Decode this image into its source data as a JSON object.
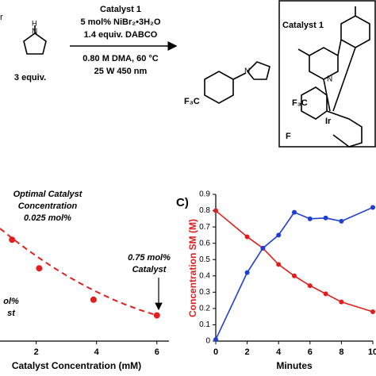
{
  "scheme": {
    "fragment": "r",
    "conditions": [
      "Catalyst 1",
      "5 mol% NiBr₂•3H₂O",
      "1.4 equiv. DABCO",
      "0.80 M DMA, 60 °C",
      "25 W 450 nm"
    ],
    "amine_equiv": "3 equiv.",
    "product_group": "F₃C",
    "box_title": "Catalyst 1",
    "metal": "Ir",
    "ligand_group": "F₃C",
    "fluoro": "F",
    "nitrogen": "N"
  },
  "chart_data": [
    {
      "type": "scatter",
      "x_label": "Catalyst Concentration (mM)",
      "x": [
        1.2,
        2.1,
        3.9,
        6
      ],
      "values": [
        0.71,
        0.51,
        0.29,
        0.18
      ],
      "color": "#e01e1e",
      "xlim": [
        0.8,
        6.4
      ],
      "ylim": [
        0,
        1
      ],
      "xticks": [
        2,
        4,
        6
      ],
      "annotations": [
        "Optimal Catalyst",
        "Concentration",
        "0.025 mol%",
        "0.75 mol%",
        "Catalyst",
        "ol%",
        "st"
      ]
    },
    {
      "type": "line",
      "label": "C)",
      "x_label": "Minutes",
      "y_label": "Concentration SM (M)",
      "xlim": [
        0,
        10
      ],
      "ylim": [
        0,
        0.9
      ],
      "xticks": [
        0,
        2,
        4,
        6,
        8,
        10
      ],
      "yticks": [
        0,
        0.1,
        0.2,
        0.3,
        0.4,
        0.5,
        0.6,
        0.7,
        0.8,
        0.9
      ],
      "series": [
        {
          "color": "#e01e1e",
          "x": [
            0,
            2,
            3,
            4,
            5,
            6,
            7,
            8,
            10
          ],
          "values": [
            0.8,
            0.64,
            0.57,
            0.47,
            0.4,
            0.34,
            0.29,
            0.24,
            0.18
          ]
        },
        {
          "color": "#1f3fd0",
          "x": [
            0,
            2,
            3,
            4,
            5,
            6,
            7,
            8,
            10
          ],
          "values": [
            0.01,
            0.42,
            0.57,
            0.65,
            0.79,
            0.75,
            0.755,
            0.735,
            0.82
          ]
        }
      ]
    }
  ]
}
